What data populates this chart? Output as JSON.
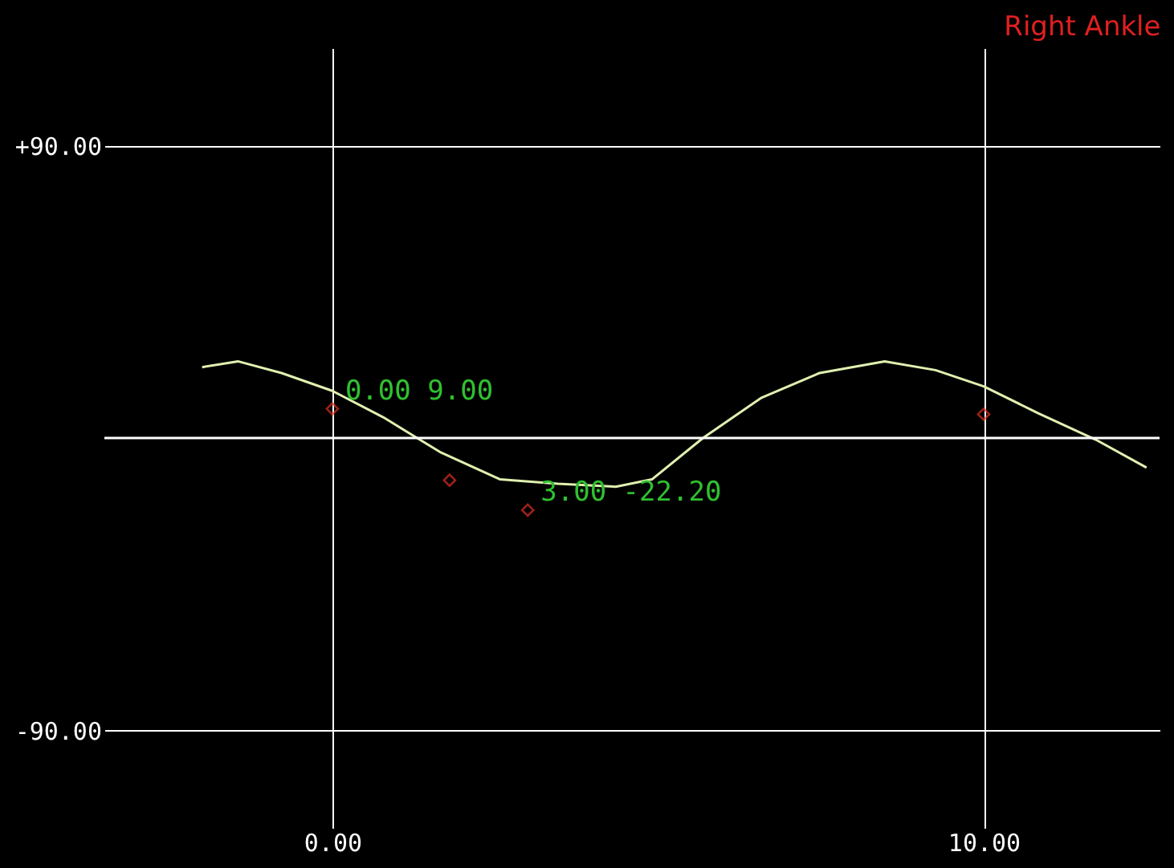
{
  "chart_data": {
    "type": "line",
    "title": "Right Ankle",
    "xlim": [
      -3.5,
      12.7
    ],
    "xticks": [
      {
        "value": 0,
        "label": "0.00"
      },
      {
        "value": 10,
        "label": "10.00"
      }
    ],
    "ylim": [
      -120,
      120
    ],
    "yticks": [
      {
        "value": -90,
        "label": "-90.00"
      },
      {
        "value": 90,
        "label": "+90.00"
      }
    ],
    "grid": true,
    "ref_lines": [
      {
        "axis": "y",
        "value": 0,
        "color": "#ffffff"
      }
    ],
    "series": [
      {
        "color": "#e0f0b0",
        "marker": "none",
        "x": [
          -2.0,
          -1.45,
          -0.78,
          0,
          0.78,
          1.67,
          2.57,
          3.46,
          4.35,
          4.91,
          5.69,
          6.58,
          7.48,
          8.48,
          9.26,
          10,
          10.83,
          11.72,
          12.5
        ],
        "values": [
          21.8,
          23.6,
          20,
          14.5,
          6.4,
          -4.5,
          -12.7,
          -14.1,
          -15,
          -12.7,
          0,
          12.3,
          20,
          23.6,
          20.9,
          15.9,
          7.7,
          -0.5,
          -9.1
        ]
      },
      {
        "type": "scatter",
        "color": "#e03020",
        "marker": "diamond",
        "x": [
          0,
          1.8,
          3,
          10
        ],
        "values": [
          9,
          -13,
          -22.2,
          7.3
        ]
      }
    ],
    "annotations": [
      {
        "text": "0.00 9.00",
        "x": 0,
        "y": 9
      },
      {
        "text": "3.00 -22.20",
        "x": 3,
        "y": -22.2
      }
    ]
  }
}
